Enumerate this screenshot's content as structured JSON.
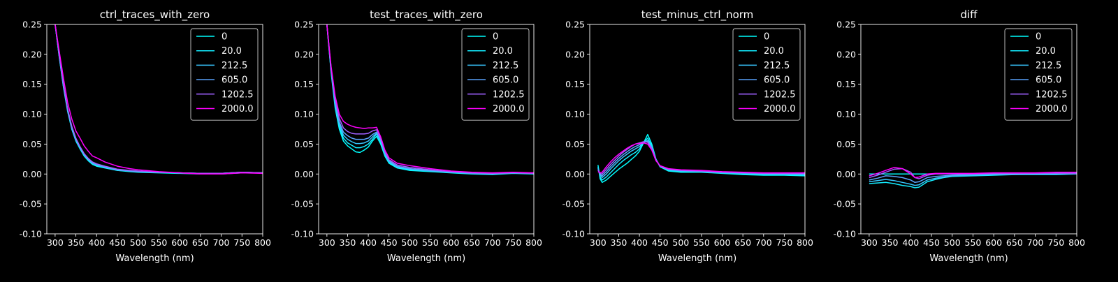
{
  "figure": {
    "background": "#000000",
    "foreground": "#ffffff"
  },
  "chart_data": [
    {
      "type": "line",
      "title": "ctrl_traces_with_zero",
      "xlabel": "Wavelength (nm)",
      "ylabel": "",
      "xlim": [
        280,
        800
      ],
      "ylim": [
        -0.1,
        0.25
      ],
      "xticks": [
        300,
        350,
        400,
        450,
        500,
        550,
        600,
        650,
        700,
        750,
        800
      ],
      "yticks": [
        -0.1,
        -0.05,
        0.0,
        0.05,
        0.1,
        0.15,
        0.2,
        0.25
      ],
      "legend_position": "top-right",
      "x": [
        300,
        310,
        320,
        330,
        340,
        350,
        360,
        370,
        380,
        390,
        400,
        420,
        450,
        480,
        500,
        550,
        600,
        650,
        700,
        750,
        800
      ],
      "series": [
        {
          "name": "0",
          "color": "#00ffff",
          "values": [
            0.25,
            0.195,
            0.145,
            0.105,
            0.075,
            0.055,
            0.042,
            0.03,
            0.022,
            0.016,
            0.013,
            0.01,
            0.006,
            0.004,
            0.003,
            0.002,
            0.001,
            0.0,
            0.0,
            0.002,
            0.002
          ]
        },
        {
          "name": "20.0",
          "color": "#13ecff",
          "values": [
            0.25,
            0.196,
            0.146,
            0.106,
            0.076,
            0.056,
            0.043,
            0.031,
            0.023,
            0.017,
            0.014,
            0.011,
            0.006,
            0.005,
            0.004,
            0.003,
            0.002,
            0.001,
            0.001,
            0.003,
            0.002
          ]
        },
        {
          "name": "212.5",
          "color": "#38c7ff",
          "values": [
            0.25,
            0.197,
            0.147,
            0.107,
            0.077,
            0.057,
            0.044,
            0.032,
            0.024,
            0.018,
            0.015,
            0.011,
            0.007,
            0.005,
            0.004,
            0.003,
            0.002,
            0.001,
            0.001,
            0.003,
            0.002
          ]
        },
        {
          "name": "605.0",
          "color": "#5aa5ff",
          "values": [
            0.25,
            0.198,
            0.148,
            0.108,
            0.078,
            0.058,
            0.045,
            0.033,
            0.025,
            0.019,
            0.016,
            0.012,
            0.007,
            0.005,
            0.004,
            0.003,
            0.002,
            0.001,
            0.001,
            0.003,
            0.002
          ]
        },
        {
          "name": "1202.5",
          "color": "#a060ff",
          "values": [
            0.25,
            0.2,
            0.15,
            0.11,
            0.08,
            0.06,
            0.046,
            0.034,
            0.026,
            0.02,
            0.017,
            0.013,
            0.008,
            0.006,
            0.005,
            0.003,
            0.002,
            0.001,
            0.001,
            0.003,
            0.002
          ]
        },
        {
          "name": "2000.0",
          "color": "#ff00ff",
          "values": [
            0.25,
            0.205,
            0.16,
            0.12,
            0.092,
            0.072,
            0.06,
            0.047,
            0.038,
            0.03,
            0.027,
            0.02,
            0.013,
            0.009,
            0.007,
            0.004,
            0.002,
            0.0,
            0.0,
            0.002,
            0.001
          ]
        }
      ]
    },
    {
      "type": "line",
      "title": "test_traces_with_zero",
      "xlabel": "Wavelength (nm)",
      "ylabel": "",
      "xlim": [
        280,
        800
      ],
      "ylim": [
        -0.1,
        0.25
      ],
      "xticks": [
        300,
        350,
        400,
        450,
        500,
        550,
        600,
        650,
        700,
        750,
        800
      ],
      "yticks": [
        -0.1,
        -0.05,
        0.0,
        0.05,
        0.1,
        0.15,
        0.2,
        0.25
      ],
      "legend_position": "top-right",
      "x": [
        300,
        310,
        320,
        330,
        340,
        350,
        360,
        370,
        380,
        390,
        400,
        410,
        420,
        430,
        440,
        450,
        470,
        500,
        550,
        600,
        650,
        700,
        750,
        800
      ],
      "series": [
        {
          "name": "0",
          "color": "#00ffff",
          "values": [
            0.25,
            0.17,
            0.11,
            0.075,
            0.055,
            0.047,
            0.042,
            0.037,
            0.036,
            0.04,
            0.045,
            0.055,
            0.063,
            0.05,
            0.03,
            0.018,
            0.01,
            0.006,
            0.004,
            0.002,
            0.0,
            -0.001,
            0.001,
            0.0
          ]
        },
        {
          "name": "20.0",
          "color": "#13ecff",
          "values": [
            0.25,
            0.172,
            0.113,
            0.079,
            0.06,
            0.052,
            0.048,
            0.044,
            0.044,
            0.046,
            0.05,
            0.058,
            0.067,
            0.053,
            0.032,
            0.02,
            0.011,
            0.007,
            0.005,
            0.003,
            0.001,
            0.0,
            0.002,
            0.001
          ]
        },
        {
          "name": "212.5",
          "color": "#38c7ff",
          "values": [
            0.25,
            0.174,
            0.116,
            0.083,
            0.065,
            0.058,
            0.054,
            0.051,
            0.051,
            0.052,
            0.055,
            0.062,
            0.068,
            0.055,
            0.033,
            0.021,
            0.012,
            0.008,
            0.005,
            0.003,
            0.001,
            0.0,
            0.002,
            0.001
          ]
        },
        {
          "name": "605.0",
          "color": "#5aa5ff",
          "values": [
            0.25,
            0.176,
            0.12,
            0.087,
            0.07,
            0.064,
            0.06,
            0.058,
            0.058,
            0.058,
            0.06,
            0.066,
            0.07,
            0.057,
            0.035,
            0.022,
            0.013,
            0.009,
            0.006,
            0.003,
            0.001,
            0.0,
            0.002,
            0.001
          ]
        },
        {
          "name": "1202.5",
          "color": "#a060ff",
          "values": [
            0.25,
            0.178,
            0.124,
            0.093,
            0.077,
            0.071,
            0.068,
            0.067,
            0.067,
            0.067,
            0.068,
            0.072,
            0.074,
            0.06,
            0.038,
            0.024,
            0.015,
            0.011,
            0.007,
            0.004,
            0.002,
            0.001,
            0.002,
            0.001
          ]
        },
        {
          "name": "2000.0",
          "color": "#ff00ff",
          "values": [
            0.25,
            0.18,
            0.13,
            0.1,
            0.088,
            0.083,
            0.08,
            0.078,
            0.077,
            0.076,
            0.077,
            0.077,
            0.078,
            0.062,
            0.04,
            0.027,
            0.018,
            0.014,
            0.009,
            0.005,
            0.003,
            0.002,
            0.003,
            0.002
          ]
        }
      ]
    },
    {
      "type": "line",
      "title": "test_minus_ctrl_norm",
      "xlabel": "Wavelength (nm)",
      "ylabel": "",
      "xlim": [
        280,
        800
      ],
      "ylim": [
        -0.1,
        0.25
      ],
      "xticks": [
        300,
        350,
        400,
        450,
        500,
        550,
        600,
        650,
        700,
        750,
        800
      ],
      "yticks": [
        -0.1,
        -0.05,
        0.0,
        0.05,
        0.1,
        0.15,
        0.2,
        0.25
      ],
      "legend_position": "top-right",
      "x": [
        300,
        305,
        310,
        320,
        330,
        340,
        350,
        360,
        370,
        380,
        390,
        400,
        410,
        420,
        430,
        440,
        450,
        470,
        500,
        550,
        600,
        650,
        700,
        750,
        800
      ],
      "series": [
        {
          "name": "0",
          "color": "#00ffff",
          "values": [
            0.015,
            -0.008,
            -0.014,
            -0.01,
            -0.004,
            0.002,
            0.008,
            0.013,
            0.018,
            0.024,
            0.03,
            0.038,
            0.052,
            0.066,
            0.05,
            0.025,
            0.012,
            0.005,
            0.003,
            0.003,
            0.001,
            -0.001,
            -0.002,
            -0.002,
            -0.003
          ]
        },
        {
          "name": "20.0",
          "color": "#13ecff",
          "values": [
            0.012,
            -0.005,
            -0.01,
            -0.005,
            0.002,
            0.009,
            0.016,
            0.022,
            0.027,
            0.032,
            0.036,
            0.042,
            0.052,
            0.06,
            0.047,
            0.024,
            0.012,
            0.006,
            0.004,
            0.004,
            0.002,
            0.0,
            -0.001,
            -0.001,
            -0.002
          ]
        },
        {
          "name": "212.5",
          "color": "#38c7ff",
          "values": [
            0.01,
            -0.002,
            -0.006,
            0.0,
            0.008,
            0.015,
            0.022,
            0.028,
            0.033,
            0.038,
            0.042,
            0.046,
            0.052,
            0.056,
            0.045,
            0.024,
            0.013,
            0.007,
            0.005,
            0.004,
            0.002,
            0.001,
            0.0,
            0.0,
            -0.001
          ]
        },
        {
          "name": "605.0",
          "color": "#5aa5ff",
          "values": [
            0.008,
            0.0,
            -0.003,
            0.004,
            0.012,
            0.019,
            0.026,
            0.032,
            0.037,
            0.042,
            0.046,
            0.049,
            0.053,
            0.055,
            0.044,
            0.024,
            0.013,
            0.008,
            0.006,
            0.004,
            0.003,
            0.002,
            0.001,
            0.0,
            0.0
          ]
        },
        {
          "name": "1202.5",
          "color": "#a060ff",
          "values": [
            0.006,
            0.001,
            0.0,
            0.008,
            0.016,
            0.023,
            0.03,
            0.036,
            0.041,
            0.046,
            0.05,
            0.052,
            0.054,
            0.053,
            0.042,
            0.023,
            0.013,
            0.008,
            0.006,
            0.005,
            0.003,
            0.002,
            0.001,
            0.001,
            0.001
          ]
        },
        {
          "name": "2000.0",
          "color": "#ff00ff",
          "values": [
            0.004,
            0.002,
            0.003,
            0.012,
            0.02,
            0.027,
            0.033,
            0.038,
            0.043,
            0.047,
            0.05,
            0.051,
            0.052,
            0.05,
            0.04,
            0.022,
            0.014,
            0.009,
            0.007,
            0.006,
            0.004,
            0.003,
            0.002,
            0.002,
            0.002
          ]
        }
      ]
    },
    {
      "type": "line",
      "title": "diff",
      "xlabel": "Wavelength (nm)",
      "ylabel": "",
      "xlim": [
        280,
        800
      ],
      "ylim": [
        -0.1,
        0.25
      ],
      "xticks": [
        300,
        350,
        400,
        450,
        500,
        550,
        600,
        650,
        700,
        750,
        800
      ],
      "yticks": [
        -0.1,
        -0.05,
        0.0,
        0.05,
        0.1,
        0.15,
        0.2,
        0.25
      ],
      "legend_position": "top-right",
      "x": [
        300,
        320,
        340,
        360,
        380,
        400,
        410,
        420,
        440,
        460,
        480,
        500,
        550,
        600,
        650,
        700,
        750,
        800
      ],
      "series": [
        {
          "name": "0",
          "color": "#00ffff",
          "values": [
            0.0,
            0.0,
            0.0,
            0.0,
            0.0,
            0.0,
            0.0,
            0.0,
            0.0,
            0.0,
            0.0,
            0.0,
            0.0,
            0.0,
            0.0,
            0.0,
            0.0,
            0.0
          ]
        },
        {
          "name": "20.0",
          "color": "#13ecff",
          "values": [
            -0.016,
            -0.015,
            -0.014,
            -0.016,
            -0.019,
            -0.021,
            -0.023,
            -0.022,
            -0.013,
            -0.009,
            -0.006,
            -0.004,
            -0.003,
            -0.002,
            -0.001,
            -0.001,
            -0.001,
            0.0
          ]
        },
        {
          "name": "212.5",
          "color": "#38c7ff",
          "values": [
            -0.013,
            -0.011,
            -0.009,
            -0.011,
            -0.014,
            -0.017,
            -0.019,
            -0.018,
            -0.01,
            -0.007,
            -0.005,
            -0.003,
            -0.002,
            -0.001,
            -0.001,
            0.0,
            0.0,
            0.0
          ]
        },
        {
          "name": "605.0",
          "color": "#5aa5ff",
          "values": [
            -0.01,
            -0.007,
            -0.003,
            -0.004,
            -0.006,
            -0.01,
            -0.014,
            -0.013,
            -0.006,
            -0.004,
            -0.003,
            -0.002,
            -0.001,
            0.0,
            0.0,
            0.0,
            0.001,
            0.001
          ]
        },
        {
          "name": "1202.5",
          "color": "#a060ff",
          "values": [
            -0.006,
            -0.002,
            0.003,
            0.008,
            0.009,
            0.003,
            -0.006,
            -0.008,
            -0.002,
            0.0,
            0.0,
            0.0,
            0.0,
            0.001,
            0.001,
            0.001,
            0.001,
            0.001
          ]
        },
        {
          "name": "2000.0",
          "color": "#ff00ff",
          "values": [
            -0.003,
            0.001,
            0.006,
            0.011,
            0.009,
            0.0,
            -0.006,
            -0.005,
            0.0,
            0.001,
            0.001,
            0.001,
            0.001,
            0.002,
            0.002,
            0.002,
            0.003,
            0.003
          ]
        }
      ]
    }
  ]
}
